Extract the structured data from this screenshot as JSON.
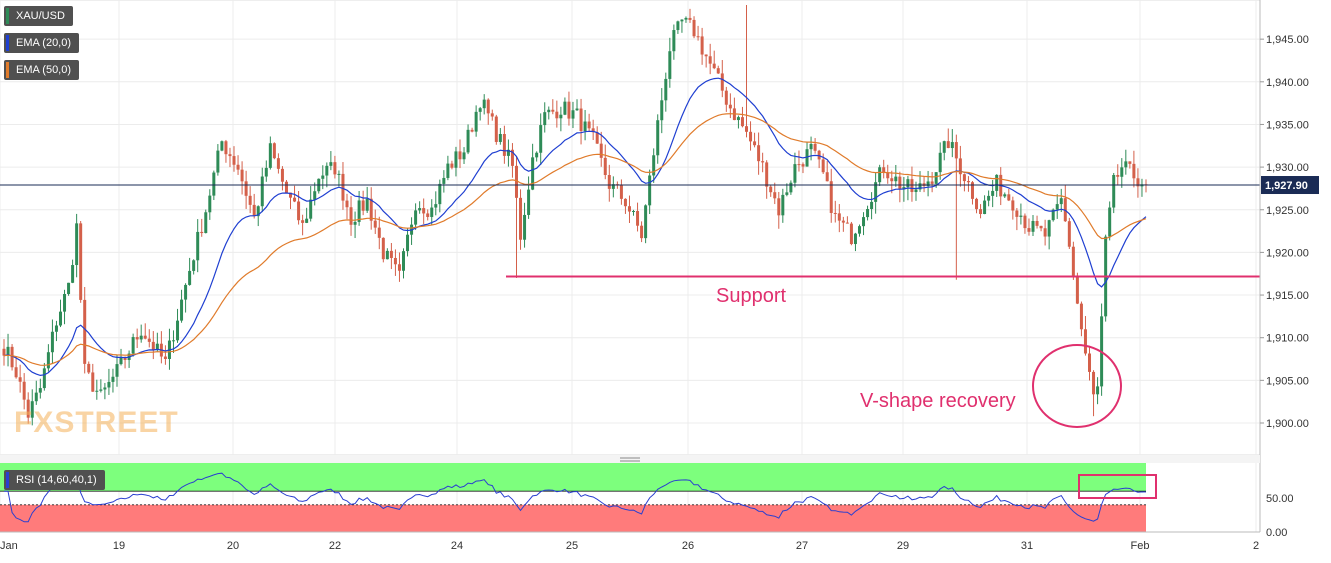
{
  "colors": {
    "bull": "#2e8b57",
    "bear": "#d4604a",
    "ema20": "#1f3fd1",
    "ema50": "#e07b2b",
    "support": "#e0306e",
    "annotation": "#e0306e",
    "price_line": "#1a2b55",
    "rsi_line": "#2a3fd0",
    "rsi_upper_zone": "#7dff7d",
    "rsi_lower_zone": "#ff7b7b",
    "watermark": "#f5b25a"
  },
  "legend": {
    "symbol": "XAU/USD",
    "ema20": "EMA (20,0)",
    "ema50": "EMA (50,0)",
    "rsi": "RSI (14,60,40,1)"
  },
  "watermark": "FXSTREET",
  "current_price": "1,927.90",
  "chart_data": {
    "type": "candlestick",
    "symbol": "XAU/USD",
    "ylim": [
      1897,
      1950
    ],
    "y_ticks": [
      "1,900.00",
      "1,905.00",
      "1,910.00",
      "1,915.00",
      "1,920.00",
      "1,925.00",
      "1,930.00",
      "1,935.00",
      "1,940.00",
      "1,945.00"
    ],
    "x_ticks": [
      "Jan",
      "19",
      "20",
      "22",
      "24",
      "25",
      "26",
      "27",
      "29",
      "31",
      "Feb",
      "2"
    ],
    "current_price": 1927.9,
    "support_level": 1917.2,
    "annotations": [
      "Support",
      "V-shape recovery"
    ],
    "anchors": [
      {
        "i": 0,
        "price": 1909
      },
      {
        "i": 3,
        "price": 1906
      },
      {
        "i": 6,
        "price": 1901
      },
      {
        "i": 9,
        "price": 1904
      },
      {
        "i": 13,
        "price": 1912
      },
      {
        "i": 16,
        "price": 1916
      },
      {
        "i": 18,
        "price": 1923
      },
      {
        "i": 20,
        "price": 1906
      },
      {
        "i": 24,
        "price": 1903
      },
      {
        "i": 28,
        "price": 1906
      },
      {
        "i": 34,
        "price": 1911
      },
      {
        "i": 40,
        "price": 1907
      },
      {
        "i": 46,
        "price": 1918
      },
      {
        "i": 50,
        "price": 1925
      },
      {
        "i": 54,
        "price": 1933
      },
      {
        "i": 58,
        "price": 1930
      },
      {
        "i": 62,
        "price": 1924
      },
      {
        "i": 66,
        "price": 1932
      },
      {
        "i": 70,
        "price": 1927
      },
      {
        "i": 74,
        "price": 1923
      },
      {
        "i": 78,
        "price": 1929
      },
      {
        "i": 82,
        "price": 1930
      },
      {
        "i": 86,
        "price": 1924
      },
      {
        "i": 90,
        "price": 1926
      },
      {
        "i": 94,
        "price": 1920
      },
      {
        "i": 98,
        "price": 1917
      },
      {
        "i": 102,
        "price": 1926
      },
      {
        "i": 106,
        "price": 1925
      },
      {
        "i": 110,
        "price": 1930
      },
      {
        "i": 114,
        "price": 1932
      },
      {
        "i": 118,
        "price": 1938
      },
      {
        "i": 122,
        "price": 1934
      },
      {
        "i": 126,
        "price": 1930
      },
      {
        "i": 128,
        "price": 1922
      },
      {
        "i": 131,
        "price": 1931
      },
      {
        "i": 134,
        "price": 1936
      },
      {
        "i": 138,
        "price": 1937
      },
      {
        "i": 142,
        "price": 1936
      },
      {
        "i": 146,
        "price": 1933
      },
      {
        "i": 150,
        "price": 1928
      },
      {
        "i": 154,
        "price": 1926
      },
      {
        "i": 158,
        "price": 1922
      },
      {
        "i": 162,
        "price": 1935
      },
      {
        "i": 165,
        "price": 1944
      },
      {
        "i": 168,
        "price": 1947
      },
      {
        "i": 171,
        "price": 1946
      },
      {
        "i": 174,
        "price": 1943
      },
      {
        "i": 177,
        "price": 1940
      },
      {
        "i": 180,
        "price": 1937
      },
      {
        "i": 184,
        "price": 1934
      },
      {
        "i": 188,
        "price": 1930
      },
      {
        "i": 192,
        "price": 1925
      },
      {
        "i": 196,
        "price": 1930
      },
      {
        "i": 200,
        "price": 1932
      },
      {
        "i": 203,
        "price": 1929
      },
      {
        "i": 206,
        "price": 1924
      },
      {
        "i": 210,
        "price": 1922
      },
      {
        "i": 214,
        "price": 1926
      },
      {
        "i": 218,
        "price": 1930
      },
      {
        "i": 222,
        "price": 1928
      },
      {
        "i": 226,
        "price": 1927
      },
      {
        "i": 230,
        "price": 1929
      },
      {
        "i": 234,
        "price": 1933
      },
      {
        "i": 238,
        "price": 1929
      },
      {
        "i": 242,
        "price": 1925
      },
      {
        "i": 246,
        "price": 1928
      },
      {
        "i": 250,
        "price": 1926
      },
      {
        "i": 254,
        "price": 1923
      },
      {
        "i": 258,
        "price": 1922
      },
      {
        "i": 262,
        "price": 1926
      },
      {
        "i": 264,
        "price": 1921
      },
      {
        "i": 266,
        "price": 1914
      },
      {
        "i": 268,
        "price": 1908
      },
      {
        "i": 270,
        "price": 1903
      },
      {
        "i": 271,
        "price": 1904
      },
      {
        "i": 272,
        "price": 1912
      },
      {
        "i": 273,
        "price": 1921
      },
      {
        "i": 275,
        "price": 1928
      },
      {
        "i": 277,
        "price": 1930
      },
      {
        "i": 280,
        "price": 1929
      },
      {
        "i": 283,
        "price": 1928
      }
    ],
    "n_candles": 284,
    "series": [
      {
        "name": "EMA (20,0)"
      },
      {
        "name": "EMA (50,0)"
      },
      {
        "name": "RSI (14,60,40,1)"
      }
    ],
    "rsi_ticks": [
      "0.00",
      "50.00"
    ],
    "rsi_levels": [
      40,
      60
    ]
  }
}
